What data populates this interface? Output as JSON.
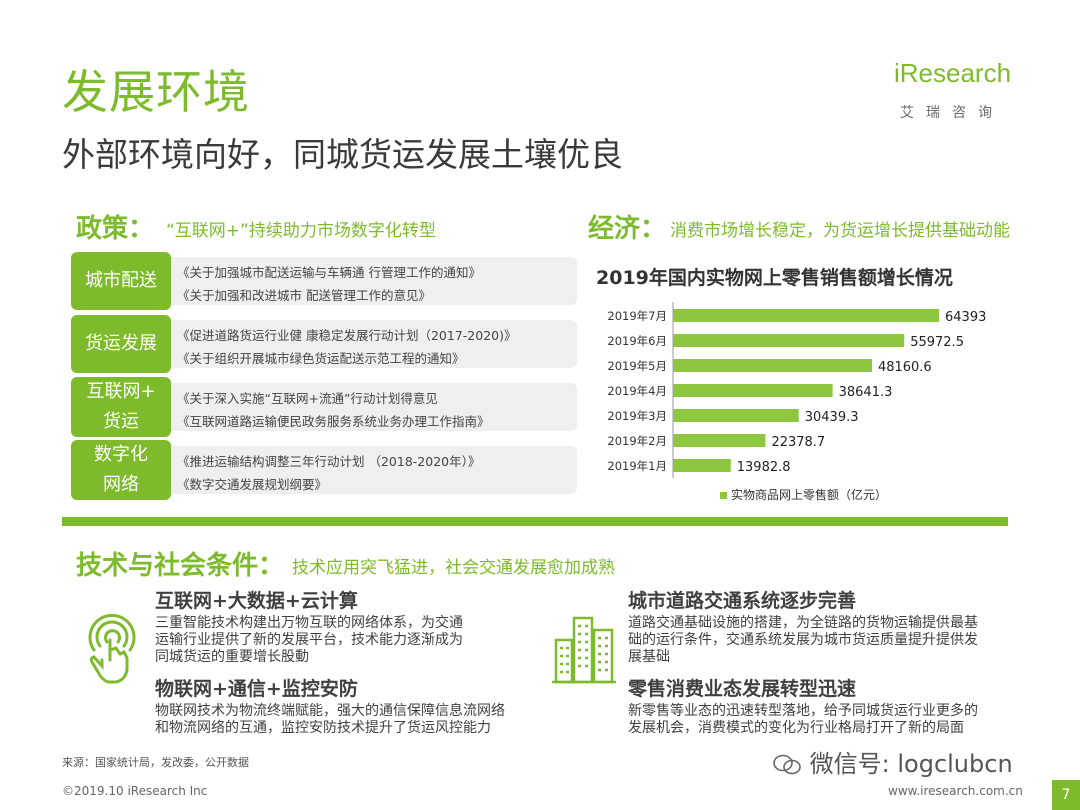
{
  "page": {
    "title": "发展环境",
    "subtitle": "外部环境向好，同城货运发展土壤优良"
  },
  "logo": {
    "main": "iResearch",
    "sub": "艾瑞咨询"
  },
  "policy": {
    "heading": "政策：",
    "note": "“互联网+”持续助力市场数字化转型",
    "rows": [
      {
        "tag": "城市配送",
        "lines": [
          "《关于加强城市配送运输与车辆通 行管理工作的通知》",
          "《关于加强和改进城市 配送管理工作的意见》"
        ]
      },
      {
        "tag": "货运发展",
        "lines": [
          "《促进道路货运行业健 康稳定发展行动计划（2017-2020)》",
          "《关于组织开展城市绿色货运配送示范工程的通知》"
        ]
      },
      {
        "tag": "互联网+货运",
        "tag_lines": [
          "互联网+",
          "货运"
        ],
        "lines": [
          "《关于深入实施“互联网+流通”行动计划得意见",
          "《互联网道路运输便民政务服务系统业务办理工作指南》"
        ]
      },
      {
        "tag": "数字化网络",
        "tag_lines": [
          "数字化",
          "网络"
        ],
        "lines": [
          "《推进运输结构调整三年行动计划 （2018-2020年）》",
          "《数字交通发展规划纲要》"
        ]
      }
    ]
  },
  "economy": {
    "heading": "经济：",
    "note": "消费市场增长稳定，为货运增长提供基础动能"
  },
  "chart_data": {
    "type": "bar",
    "orientation": "horizontal",
    "title": "2019年国内实物网上零售销售额增长情况",
    "categories": [
      "2019年7月",
      "2019年6月",
      "2019年5月",
      "2019年4月",
      "2019年3月",
      "2019年2月",
      "2019年1月"
    ],
    "series": [
      {
        "name": "实物商品网上零售额（亿元）",
        "values": [
          64393,
          55972.5,
          48160.6,
          38641.3,
          30439.3,
          22378.7,
          13982.8
        ]
      }
    ],
    "value_labels": [
      "64393",
      "55972.5",
      "48160.6",
      "38641.3",
      "30439.3",
      "22378.7",
      "13982.8"
    ],
    "xlim": [
      0,
      64393
    ],
    "grid": false,
    "legend": "bottom",
    "bar_color": "#8dc63f"
  },
  "tech": {
    "heading": "技术与社会条件：",
    "note": "技术应用突飞猛进，社会交通发展愈加成熟",
    "items": [
      {
        "title": "互联网+大数据+云计算",
        "text": [
          "三重智能技术构建出万物互联的网络体系，为交通",
          "运输行业提供了新的发展平台，技术能力逐渐成为",
          "同城货运的重要增长股動"
        ]
      },
      {
        "title": "物联网+通信+监控安防",
        "text": [
          "物联网技术为物流终端赋能，强大的通信保障信息流网络",
          "和物流网络的互通，监控安防技术提升了货运风控能力"
        ]
      },
      {
        "title": "城市道路交通系统逐步完善",
        "text": [
          "道路交通基础设施的搭建，为全链路的货物运输提供最基",
          "础的运行条件，交通系统发展为城市货运质量提升提供发",
          "展基础"
        ]
      },
      {
        "title": "零售消费业态发展转型迅速",
        "text": [
          "新零售等业态的迅速转型落地，给予同城货运行业更多的",
          "发展机会，消费模式的变化为行业格局打开了新的局面"
        ]
      }
    ]
  },
  "footer": {
    "source": "来源：国家统计局，发改委，公开数据",
    "copyright": "©2019.10 iResearch Inc",
    "website": "www.iresearch.com.cn",
    "page_number": "7",
    "watermark": "微信号: logclubcn"
  },
  "colors": {
    "accent": "#7dbb2c",
    "panel": "#efefef"
  }
}
